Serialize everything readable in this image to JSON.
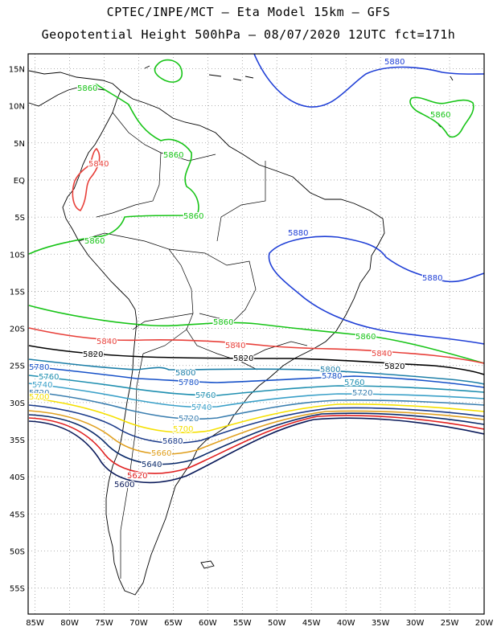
{
  "header": {
    "line1": "CPTEC/INPE/MCT –  Eta Model 15km – GFS",
    "line2": "Geopotential Height 500hPa – 08/07/2020 12UTC fct=171h"
  },
  "axes": {
    "lat_labels": [
      "15N",
      "10N",
      "5N",
      "EQ",
      "5S",
      "10S",
      "15S",
      "20S",
      "25S",
      "30S",
      "35S",
      "40S",
      "45S",
      "50S",
      "55S"
    ],
    "lon_labels": [
      "85W",
      "80W",
      "75W",
      "70W",
      "65W",
      "60W",
      "55W",
      "50W",
      "45W",
      "40W",
      "35W",
      "30W",
      "25W",
      "20W"
    ],
    "lat_range": [
      17,
      -58.5
    ],
    "lon_range": [
      -86,
      -20
    ]
  },
  "colors": {
    "c5880": "#1f3fd6",
    "c5860": "#17c417",
    "c5840": "#e8403a",
    "c5820": "#000000",
    "c5800": "#1d7fa8",
    "c5780": "#1550c8",
    "c5760": "#1f8fb0",
    "c5740": "#3aa0c8",
    "c5720": "#3b7fb0",
    "c5700": "#f5e000",
    "c5680": "#1a3a8a",
    "c5660": "#e0a020",
    "c5640": "#0a2a6a",
    "c5620": "#e02020",
    "c5600": "#0a1a5a"
  },
  "contour_labels": [
    {
      "text": "5880",
      "color": "c5880"
    },
    {
      "text": "5880",
      "color": "c5880"
    },
    {
      "text": "5880",
      "color": "c5880"
    },
    {
      "text": "5860",
      "color": "c5860"
    },
    {
      "text": "5860",
      "color": "c5860"
    },
    {
      "text": "5860",
      "color": "c5860"
    },
    {
      "text": "5860",
      "color": "c5860"
    },
    {
      "text": "5860",
      "color": "c5860"
    },
    {
      "text": "5860",
      "color": "c5860"
    },
    {
      "text": "5860",
      "color": "c5860"
    },
    {
      "text": "5840",
      "color": "c5840"
    },
    {
      "text": "5840",
      "color": "c5840"
    },
    {
      "text": "5840",
      "color": "c5840"
    },
    {
      "text": "5840",
      "color": "c5840"
    },
    {
      "text": "5820",
      "color": "c5820"
    },
    {
      "text": "5820",
      "color": "c5820"
    },
    {
      "text": "5820",
      "color": "c5820"
    },
    {
      "text": "5800",
      "color": "c5800"
    },
    {
      "text": "5800",
      "color": "c5800"
    },
    {
      "text": "5780",
      "color": "c5780"
    },
    {
      "text": "5780",
      "color": "c5780"
    },
    {
      "text": "5780",
      "color": "c5780"
    },
    {
      "text": "5760",
      "color": "c5760"
    },
    {
      "text": "5760",
      "color": "c5760"
    },
    {
      "text": "5760",
      "color": "c5760"
    },
    {
      "text": "5740",
      "color": "c5740"
    },
    {
      "text": "5740",
      "color": "c5740"
    },
    {
      "text": "5720",
      "color": "c5720"
    },
    {
      "text": "5720",
      "color": "c5720"
    },
    {
      "text": "5720",
      "color": "c5720"
    },
    {
      "text": "5700",
      "color": "c5700"
    },
    {
      "text": "5700",
      "color": "c5700"
    },
    {
      "text": "5680",
      "color": "c5680"
    },
    {
      "text": "5660",
      "color": "c5660"
    },
    {
      "text": "5640",
      "color": "c5640"
    },
    {
      "text": "5620",
      "color": "c5620"
    },
    {
      "text": "5600",
      "color": "c5600"
    }
  ]
}
